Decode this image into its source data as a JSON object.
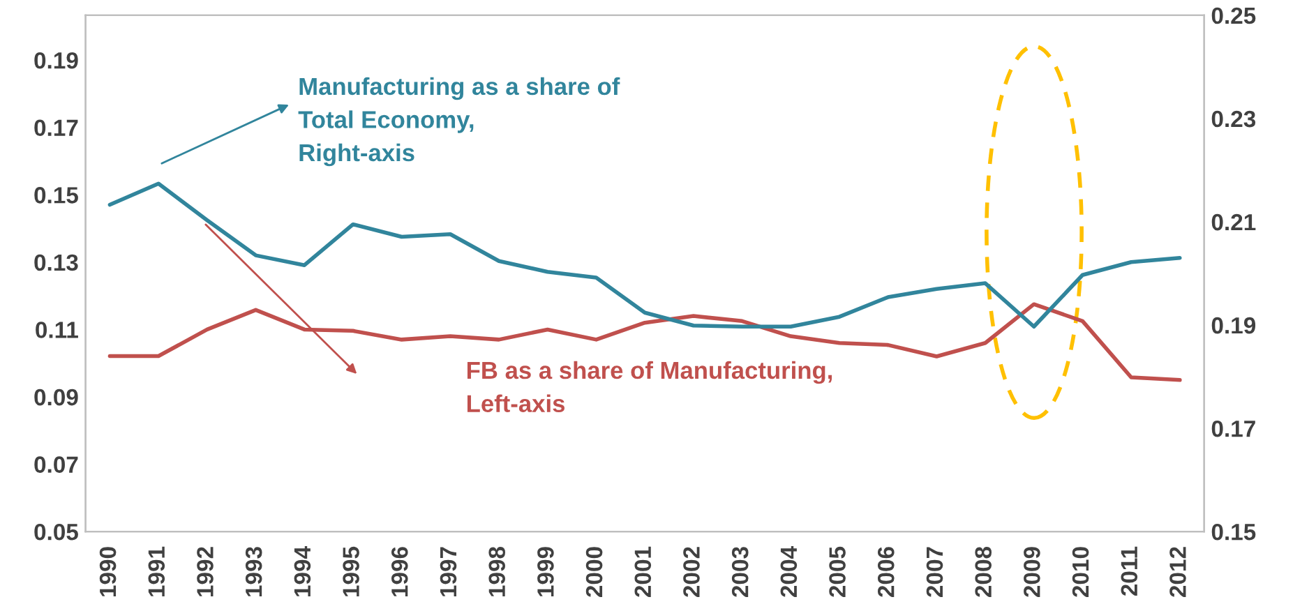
{
  "chart_data": {
    "type": "line",
    "categories": [
      "1990",
      "1991",
      "1992",
      "1993",
      "1994",
      "1995",
      "1996",
      "1997",
      "1998",
      "1999",
      "2000",
      "2001",
      "2002",
      "2003",
      "2004",
      "2005",
      "2006",
      "2007",
      "2008",
      "2009",
      "2010",
      "2011",
      "2012"
    ],
    "series": [
      {
        "color": "#31859c",
        "axis": "y2",
        "values": [
          0.2133,
          0.2174,
          0.2103,
          0.2035,
          0.2016,
          0.2095,
          0.2071,
          0.2076,
          0.2024,
          0.2003,
          0.1992,
          0.1924,
          0.1899,
          0.1897,
          0.1897,
          0.1916,
          0.1954,
          0.197,
          0.1981,
          0.1897,
          0.1997,
          0.2022,
          0.203
        ]
      },
      {
        "color": "#c0504d",
        "axis": "y",
        "values": [
          0.1021,
          0.1021,
          0.11,
          0.1158,
          0.11,
          0.1096,
          0.107,
          0.108,
          0.107,
          0.11,
          0.107,
          0.112,
          0.114,
          0.1125,
          0.108,
          0.106,
          0.1054,
          0.102,
          0.106,
          0.1175,
          0.1125,
          0.0958,
          0.095
        ]
      }
    ],
    "ylim": [
      0.05,
      0.2033
    ],
    "yticks": [
      {
        "value": 0.05,
        "label": "0.05"
      },
      {
        "value": 0.07,
        "label": "0.07"
      },
      {
        "value": 0.09,
        "label": "0.09"
      },
      {
        "value": 0.11,
        "label": "0.11"
      },
      {
        "value": 0.13,
        "label": "0.13"
      },
      {
        "value": 0.15,
        "label": "0.15"
      },
      {
        "value": 0.17,
        "label": "0.17"
      },
      {
        "value": 0.19,
        "label": "0.19"
      }
    ],
    "y2lim": [
      0.15,
      0.25
    ],
    "y2ticks": [
      {
        "value": 0.15,
        "label": "0.15"
      },
      {
        "value": 0.17,
        "label": "0.17"
      },
      {
        "value": 0.19,
        "label": "0.19"
      },
      {
        "value": 0.21,
        "label": "0.21"
      },
      {
        "value": 0.23,
        "label": "0.23"
      },
      {
        "value": 0.25,
        "label": "0.25"
      }
    ],
    "annotations": [
      "Manufacturing as a share of\nTotal Economy,\nRight-axis",
      "FB as a share of Manufacturing,\nLeft-axis"
    ],
    "grid": false,
    "legend": false
  }
}
